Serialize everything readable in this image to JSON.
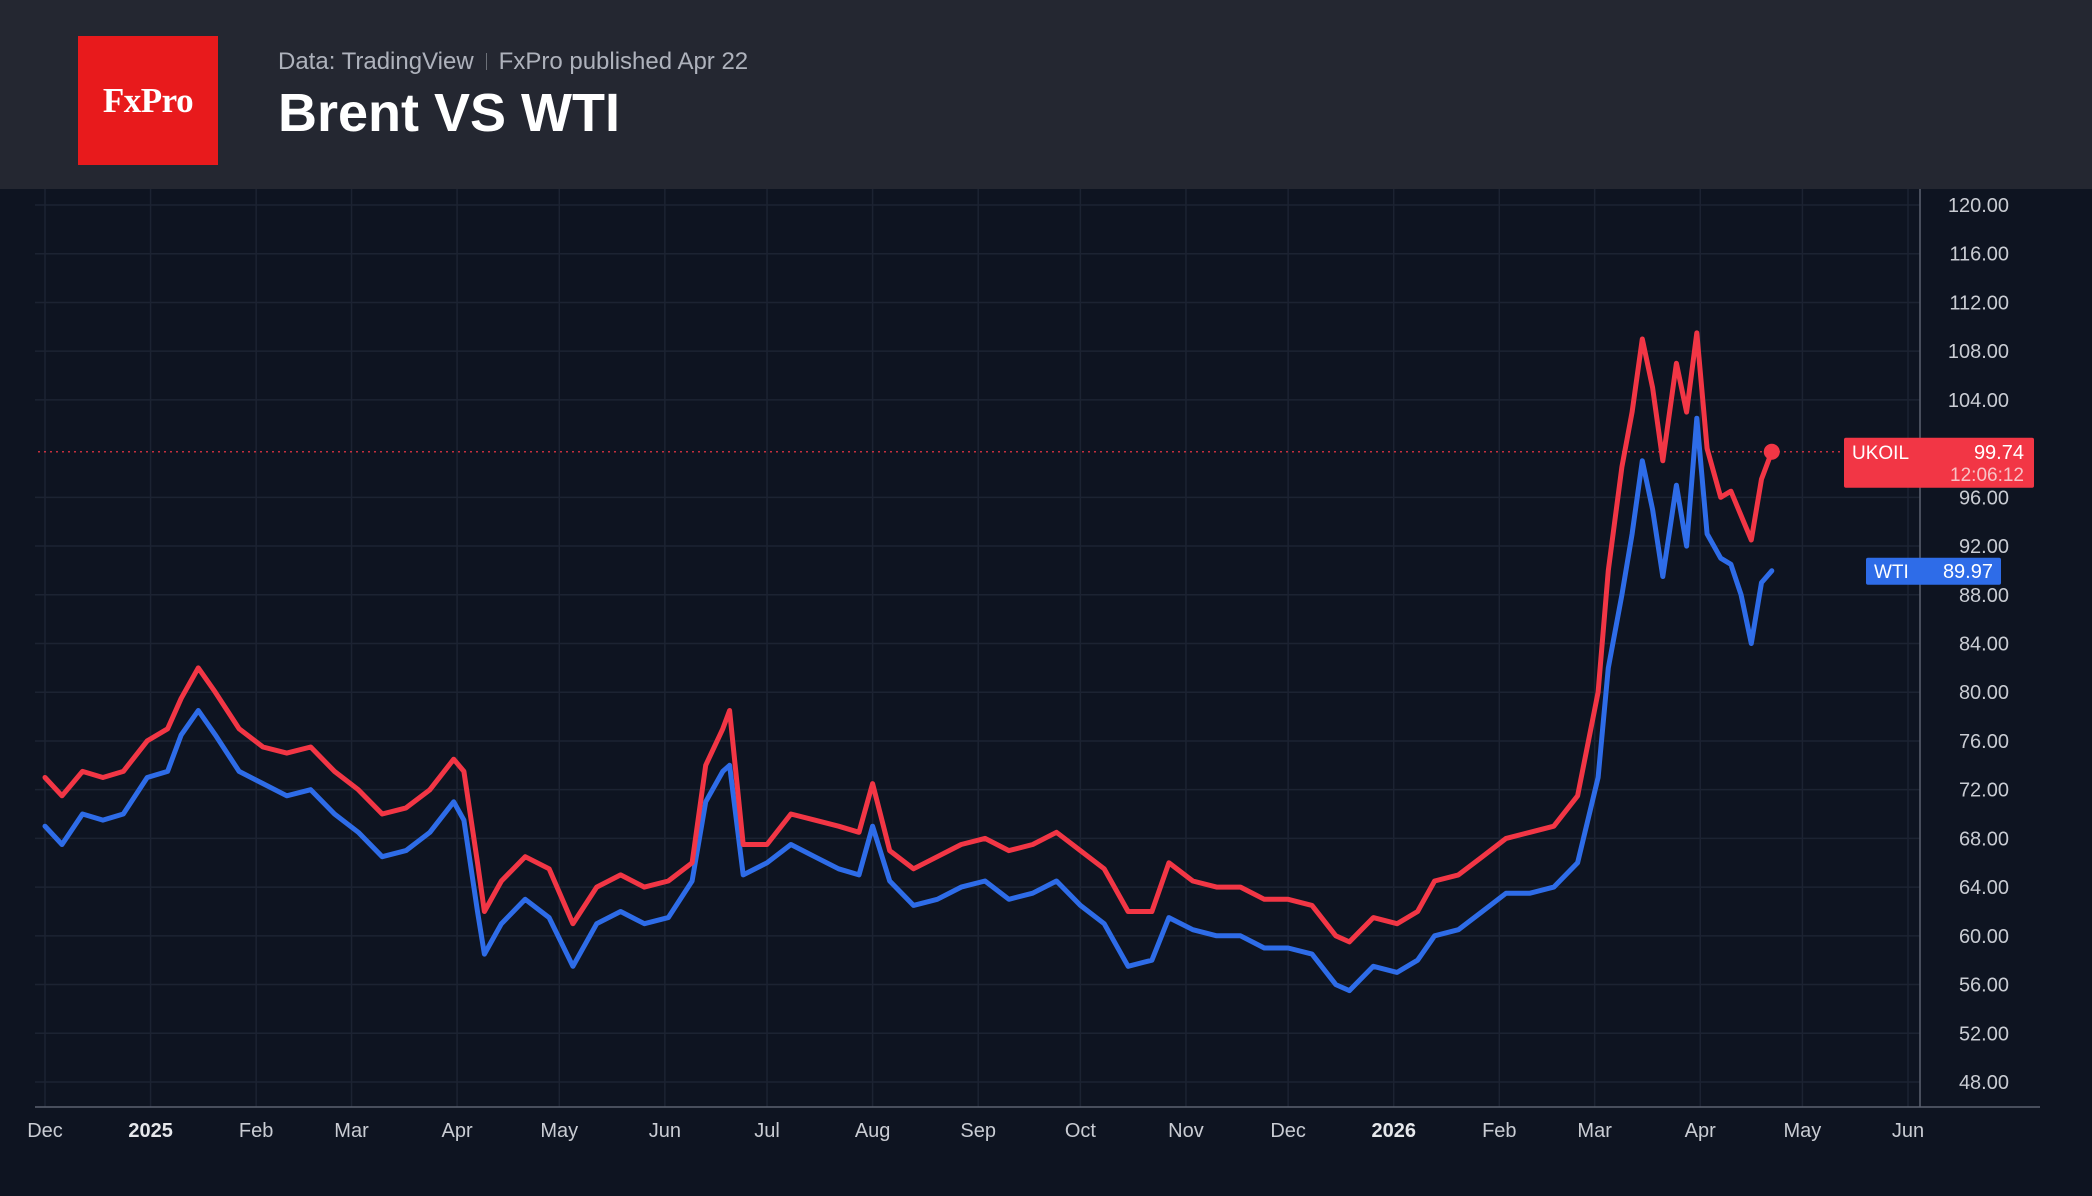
{
  "header": {
    "logo_text": "FxPro",
    "source": "Data: TradingView",
    "published": "FxPro published Apr 22",
    "title": "Brent VS WTI"
  },
  "colors": {
    "background": "#0e1421",
    "header": "#242731",
    "brent": "#f23645",
    "wti": "#2e6ce8",
    "logo": "#e81a1c"
  },
  "chart_data": {
    "type": "line",
    "title": "Brent VS WTI",
    "y_ticks": [
      "120.00",
      "116.00",
      "112.00",
      "108.00",
      "104.00",
      "96.00",
      "92.00",
      "88.00",
      "84.00",
      "80.00",
      "76.00",
      "72.00",
      "68.00",
      "64.00",
      "60.00",
      "56.00",
      "52.00",
      "48.00"
    ],
    "ylim": [
      46,
      121
    ],
    "y_scale": "linear",
    "x_ticks": [
      {
        "label": "Dec",
        "date": "2024-12-01",
        "bold": false
      },
      {
        "label": "2025",
        "date": "2025-01-01",
        "bold": true
      },
      {
        "label": "Feb",
        "date": "2025-02-01",
        "bold": false
      },
      {
        "label": "Mar",
        "date": "2025-03-01",
        "bold": false
      },
      {
        "label": "Apr",
        "date": "2025-04-01",
        "bold": false
      },
      {
        "label": "May",
        "date": "2025-05-01",
        "bold": false
      },
      {
        "label": "Jun",
        "date": "2025-06-01",
        "bold": false
      },
      {
        "label": "Jul",
        "date": "2025-07-01",
        "bold": false
      },
      {
        "label": "Aug",
        "date": "2025-08-01",
        "bold": false
      },
      {
        "label": "Sep",
        "date": "2025-09-01",
        "bold": false
      },
      {
        "label": "Oct",
        "date": "2025-10-01",
        "bold": false
      },
      {
        "label": "Nov",
        "date": "2025-11-01",
        "bold": false
      },
      {
        "label": "Dec",
        "date": "2025-12-01",
        "bold": false
      },
      {
        "label": "2026",
        "date": "2026-01-01",
        "bold": true
      },
      {
        "label": "Feb",
        "date": "2026-02-01",
        "bold": false
      },
      {
        "label": "Mar",
        "date": "2026-03-01",
        "bold": false
      },
      {
        "label": "Apr",
        "date": "2026-04-01",
        "bold": false
      },
      {
        "label": "May",
        "date": "2026-05-01",
        "bold": false
      },
      {
        "label": "Jun",
        "date": "2026-06-01",
        "bold": false
      }
    ],
    "grid": true,
    "series": [
      {
        "name": "UKOIL",
        "color": "#f23645",
        "last_value": "99.74",
        "countdown": "12:06:12",
        "points": [
          [
            "2024-12-01",
            73
          ],
          [
            "2024-12-06",
            71.5
          ],
          [
            "2024-12-12",
            73.5
          ],
          [
            "2024-12-18",
            73
          ],
          [
            "2024-12-24",
            73.5
          ],
          [
            "2024-12-31",
            76
          ],
          [
            "2025-01-06",
            77
          ],
          [
            "2025-01-10",
            79.5
          ],
          [
            "2025-01-15",
            82
          ],
          [
            "2025-01-20",
            80
          ],
          [
            "2025-01-27",
            77
          ],
          [
            "2025-02-03",
            75.5
          ],
          [
            "2025-02-10",
            75
          ],
          [
            "2025-02-17",
            75.5
          ],
          [
            "2025-02-24",
            73.5
          ],
          [
            "2025-03-03",
            72
          ],
          [
            "2025-03-10",
            70
          ],
          [
            "2025-03-17",
            70.5
          ],
          [
            "2025-03-24",
            72
          ],
          [
            "2025-03-31",
            74.5
          ],
          [
            "2025-04-03",
            73.5
          ],
          [
            "2025-04-07",
            66
          ],
          [
            "2025-04-09",
            62
          ],
          [
            "2025-04-14",
            64.5
          ],
          [
            "2025-04-21",
            66.5
          ],
          [
            "2025-04-28",
            65.5
          ],
          [
            "2025-05-05",
            61
          ],
          [
            "2025-05-12",
            64
          ],
          [
            "2025-05-19",
            65
          ],
          [
            "2025-05-26",
            64
          ],
          [
            "2025-06-02",
            64.5
          ],
          [
            "2025-06-09",
            66
          ],
          [
            "2025-06-13",
            74
          ],
          [
            "2025-06-18",
            77
          ],
          [
            "2025-06-20",
            78.5
          ],
          [
            "2025-06-24",
            67.5
          ],
          [
            "2025-07-01",
            67.5
          ],
          [
            "2025-07-08",
            70
          ],
          [
            "2025-07-15",
            69.5
          ],
          [
            "2025-07-22",
            69
          ],
          [
            "2025-07-28",
            68.5
          ],
          [
            "2025-08-01",
            72.5
          ],
          [
            "2025-08-06",
            67
          ],
          [
            "2025-08-13",
            65.5
          ],
          [
            "2025-08-20",
            66.5
          ],
          [
            "2025-08-27",
            67.5
          ],
          [
            "2025-09-03",
            68
          ],
          [
            "2025-09-10",
            67
          ],
          [
            "2025-09-17",
            67.5
          ],
          [
            "2025-09-24",
            68.5
          ],
          [
            "2025-10-01",
            67
          ],
          [
            "2025-10-08",
            65.5
          ],
          [
            "2025-10-15",
            62
          ],
          [
            "2025-10-22",
            62
          ],
          [
            "2025-10-27",
            66
          ],
          [
            "2025-11-03",
            64.5
          ],
          [
            "2025-11-10",
            64
          ],
          [
            "2025-11-17",
            64
          ],
          [
            "2025-11-24",
            63
          ],
          [
            "2025-12-01",
            63
          ],
          [
            "2025-12-08",
            62.5
          ],
          [
            "2025-12-15",
            60
          ],
          [
            "2025-12-19",
            59.5
          ],
          [
            "2025-12-26",
            61.5
          ],
          [
            "2026-01-02",
            61
          ],
          [
            "2026-01-08",
            62
          ],
          [
            "2026-01-13",
            64.5
          ],
          [
            "2026-01-20",
            65
          ],
          [
            "2026-01-27",
            66.5
          ],
          [
            "2026-02-03",
            68
          ],
          [
            "2026-02-10",
            68.5
          ],
          [
            "2026-02-17",
            69
          ],
          [
            "2026-02-24",
            71.5
          ],
          [
            "2026-03-02",
            80
          ],
          [
            "2026-03-05",
            90
          ],
          [
            "2026-03-09",
            98.5
          ],
          [
            "2026-03-12",
            103
          ],
          [
            "2026-03-15",
            109
          ],
          [
            "2026-03-18",
            105
          ],
          [
            "2026-03-21",
            99
          ],
          [
            "2026-03-25",
            107
          ],
          [
            "2026-03-28",
            103
          ],
          [
            "2026-03-31",
            109.5
          ],
          [
            "2026-04-03",
            100
          ],
          [
            "2026-04-07",
            96
          ],
          [
            "2026-04-10",
            96.5
          ],
          [
            "2026-04-13",
            94.5
          ],
          [
            "2026-04-16",
            92.5
          ],
          [
            "2026-04-19",
            97.5
          ],
          [
            "2026-04-22",
            99.74
          ]
        ]
      },
      {
        "name": "WTI",
        "color": "#2e6ce8",
        "last_value": "89.97",
        "points": [
          [
            "2024-12-01",
            69
          ],
          [
            "2024-12-06",
            67.5
          ],
          [
            "2024-12-12",
            70
          ],
          [
            "2024-12-18",
            69.5
          ],
          [
            "2024-12-24",
            70
          ],
          [
            "2024-12-31",
            73
          ],
          [
            "2025-01-06",
            73.5
          ],
          [
            "2025-01-10",
            76.5
          ],
          [
            "2025-01-15",
            78.5
          ],
          [
            "2025-01-20",
            76.5
          ],
          [
            "2025-01-27",
            73.5
          ],
          [
            "2025-02-03",
            72.5
          ],
          [
            "2025-02-10",
            71.5
          ],
          [
            "2025-02-17",
            72
          ],
          [
            "2025-02-24",
            70
          ],
          [
            "2025-03-03",
            68.5
          ],
          [
            "2025-03-10",
            66.5
          ],
          [
            "2025-03-17",
            67
          ],
          [
            "2025-03-24",
            68.5
          ],
          [
            "2025-03-31",
            71
          ],
          [
            "2025-04-03",
            69.5
          ],
          [
            "2025-04-07",
            62
          ],
          [
            "2025-04-09",
            58.5
          ],
          [
            "2025-04-14",
            61
          ],
          [
            "2025-04-21",
            63
          ],
          [
            "2025-04-28",
            61.5
          ],
          [
            "2025-05-05",
            57.5
          ],
          [
            "2025-05-12",
            61
          ],
          [
            "2025-05-19",
            62
          ],
          [
            "2025-05-26",
            61
          ],
          [
            "2025-06-02",
            61.5
          ],
          [
            "2025-06-09",
            64.5
          ],
          [
            "2025-06-13",
            71
          ],
          [
            "2025-06-18",
            73.5
          ],
          [
            "2025-06-20",
            74
          ],
          [
            "2025-06-24",
            65
          ],
          [
            "2025-07-01",
            66
          ],
          [
            "2025-07-08",
            67.5
          ],
          [
            "2025-07-15",
            66.5
          ],
          [
            "2025-07-22",
            65.5
          ],
          [
            "2025-07-28",
            65
          ],
          [
            "2025-08-01",
            69
          ],
          [
            "2025-08-06",
            64.5
          ],
          [
            "2025-08-13",
            62.5
          ],
          [
            "2025-08-20",
            63
          ],
          [
            "2025-08-27",
            64
          ],
          [
            "2025-09-03",
            64.5
          ],
          [
            "2025-09-10",
            63
          ],
          [
            "2025-09-17",
            63.5
          ],
          [
            "2025-09-24",
            64.5
          ],
          [
            "2025-10-01",
            62.5
          ],
          [
            "2025-10-08",
            61
          ],
          [
            "2025-10-15",
            57.5
          ],
          [
            "2025-10-22",
            58
          ],
          [
            "2025-10-27",
            61.5
          ],
          [
            "2025-11-03",
            60.5
          ],
          [
            "2025-11-10",
            60
          ],
          [
            "2025-11-17",
            60
          ],
          [
            "2025-11-24",
            59
          ],
          [
            "2025-12-01",
            59
          ],
          [
            "2025-12-08",
            58.5
          ],
          [
            "2025-12-15",
            56
          ],
          [
            "2025-12-19",
            55.5
          ],
          [
            "2025-12-26",
            57.5
          ],
          [
            "2026-01-02",
            57
          ],
          [
            "2026-01-08",
            58
          ],
          [
            "2026-01-13",
            60
          ],
          [
            "2026-01-20",
            60.5
          ],
          [
            "2026-01-27",
            62
          ],
          [
            "2026-02-03",
            63.5
          ],
          [
            "2026-02-10",
            63.5
          ],
          [
            "2026-02-17",
            64
          ],
          [
            "2026-02-24",
            66
          ],
          [
            "2026-03-02",
            73
          ],
          [
            "2026-03-05",
            82
          ],
          [
            "2026-03-09",
            88
          ],
          [
            "2026-03-12",
            93
          ],
          [
            "2026-03-15",
            99
          ],
          [
            "2026-03-18",
            95
          ],
          [
            "2026-03-21",
            89.5
          ],
          [
            "2026-03-25",
            97
          ],
          [
            "2026-03-28",
            92
          ],
          [
            "2026-03-31",
            102.5
          ],
          [
            "2026-04-03",
            93
          ],
          [
            "2026-04-07",
            91
          ],
          [
            "2026-04-10",
            90.5
          ],
          [
            "2026-04-13",
            88
          ],
          [
            "2026-04-16",
            84
          ],
          [
            "2026-04-19",
            89
          ],
          [
            "2026-04-22",
            89.97
          ]
        ]
      }
    ]
  }
}
